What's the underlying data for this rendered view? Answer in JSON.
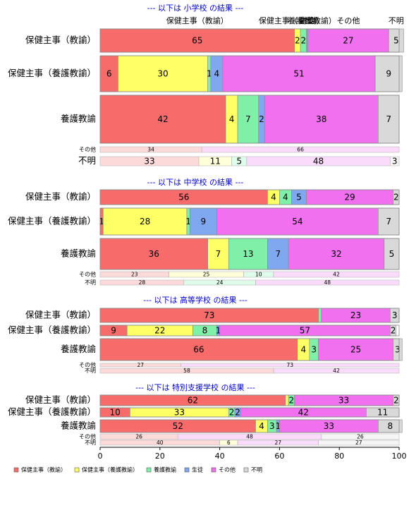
{
  "chart_data": {
    "type": "stacked-bar-panels",
    "xlim": [
      0,
      100
    ],
    "xticks": [
      0,
      20,
      40,
      60,
      80,
      100
    ],
    "legend": "bottom-left",
    "series": [
      {
        "name": "保健主事（教諭）",
        "color": "#f76b6b"
      },
      {
        "name": "保健主事（養護教諭）",
        "color": "#ffff66"
      },
      {
        "name": "養護教諭",
        "color": "#80f0a8"
      },
      {
        "name": "生徒",
        "color": "#80a8f0"
      },
      {
        "name": "その他",
        "color": "#f070f0"
      },
      {
        "name": "不明",
        "color": "#d9d9d9"
      }
    ],
    "panels": [
      {
        "title": "--- 以下は 小学校 の結果 ---",
        "rows": [
          {
            "label": "保健主事（教諭）",
            "values": [
              65,
              2,
              2,
              0.5,
              27,
              5
            ],
            "value_labels": [
              "65",
              "2",
              "2",
              null,
              "27",
              "5"
            ],
            "pale": false
          },
          {
            "label": "保健主事（養護教諭）",
            "values": [
              6,
              30,
              1,
              4,
              51,
              9
            ],
            "value_labels": [
              "6",
              "30",
              "1",
              "4",
              "51",
              "9"
            ],
            "pale": false
          },
          {
            "label": "養護教諭",
            "values": [
              42,
              4,
              7,
              2,
              38,
              7
            ],
            "value_labels": [
              "42",
              "4",
              "7",
              "2",
              "38",
              "7"
            ],
            "pale": false
          },
          {
            "label": "その他",
            "values": [
              34,
              0,
              0,
              0,
              66,
              0
            ],
            "value_labels": [
              "34",
              null,
              null,
              null,
              "66",
              null
            ],
            "pale": true
          },
          {
            "label": "不明",
            "values": [
              33,
              11,
              5,
              0,
              48,
              3
            ],
            "value_labels": [
              "33",
              "11",
              "5",
              null,
              "48",
              "3"
            ],
            "pale": true
          }
        ]
      },
      {
        "title": "--- 以下は 中学校 の結果 ---",
        "rows": [
          {
            "label": "保健主事（教諭）",
            "values": [
              56,
              4,
              4,
              5,
              29,
              2
            ],
            "value_labels": [
              "56",
              "4",
              "4",
              "5",
              "29",
              "2"
            ],
            "pale": false
          },
          {
            "label": "保健主事（養護教諭）",
            "values": [
              1,
              28,
              1,
              9,
              54,
              7
            ],
            "value_labels": [
              "1",
              "28",
              "1",
              "9",
              "54",
              "7"
            ],
            "pale": false
          },
          {
            "label": "養護教諭",
            "values": [
              36,
              7,
              13,
              7,
              32,
              5
            ],
            "value_labels": [
              "36",
              "7",
              "13",
              "7",
              "32",
              "5"
            ],
            "pale": false
          },
          {
            "label": "その他",
            "values": [
              23,
              25,
              10,
              0,
              42,
              0
            ],
            "value_labels": [
              "23",
              "25",
              "10",
              null,
              "42",
              null
            ],
            "pale": true
          },
          {
            "label": "不明",
            "values": [
              28,
              0,
              24,
              0,
              48,
              0
            ],
            "value_labels": [
              "28",
              null,
              "24",
              null,
              "48",
              null
            ],
            "pale": true
          }
        ]
      },
      {
        "title": "--- 以下は 高等学校 の結果 ---",
        "rows": [
          {
            "label": "保健主事（教諭）",
            "values": [
              73,
              0,
              1,
              0,
              23,
              3
            ],
            "value_labels": [
              "73",
              null,
              null,
              null,
              "23",
              "3"
            ],
            "pale": false
          },
          {
            "label": "保健主事（養護教諭）",
            "values": [
              9,
              22,
              8,
              1,
              57,
              2
            ],
            "value_labels": [
              "9",
              "22",
              "8",
              "1",
              "57",
              "2"
            ],
            "pale": false
          },
          {
            "label": "養護教諭",
            "values": [
              66,
              4,
              3,
              0,
              25,
              3
            ],
            "value_labels": [
              "66",
              "4",
              "3",
              null,
              "25",
              "3"
            ],
            "pale": false
          },
          {
            "label": "その他",
            "values": [
              27,
              0,
              0,
              0,
              73,
              0
            ],
            "value_labels": [
              "27",
              null,
              null,
              null,
              "73",
              null
            ],
            "pale": true
          },
          {
            "label": "不明",
            "values": [
              58,
              0,
              0,
              0,
              42,
              0
            ],
            "value_labels": [
              "58",
              null,
              null,
              null,
              "42",
              null
            ],
            "pale": true
          }
        ]
      },
      {
        "title": "--- 以下は 特別支援学校 の結果 ---",
        "rows": [
          {
            "label": "保健主事（教諭）",
            "values": [
              62,
              1,
              2,
              0,
              33,
              2
            ],
            "value_labels": [
              "62",
              null,
              "2",
              null,
              "33",
              "2"
            ],
            "pale": false
          },
          {
            "label": "保健主事（養護教諭）",
            "values": [
              10,
              33,
              2,
              2,
              42,
              11
            ],
            "value_labels": [
              "10",
              "33",
              "2",
              "2",
              "42",
              "11"
            ],
            "pale": false
          },
          {
            "label": "養護教諭",
            "values": [
              52,
              4,
              3,
              1,
              33,
              8
            ],
            "value_labels": [
              "52",
              "4",
              "3",
              "1",
              "33",
              "8"
            ],
            "pale": false
          },
          {
            "label": "その他",
            "values": [
              26,
              0,
              0,
              0,
              48,
              26
            ],
            "value_labels": [
              "26",
              null,
              null,
              null,
              "48",
              "26"
            ],
            "pale": true
          },
          {
            "label": "不明",
            "values": [
              40,
              6,
              0,
              0,
              27,
              27
            ],
            "value_labels": [
              "40",
              "6",
              null,
              null,
              "27",
              "27"
            ],
            "pale": true
          }
        ]
      }
    ]
  }
}
